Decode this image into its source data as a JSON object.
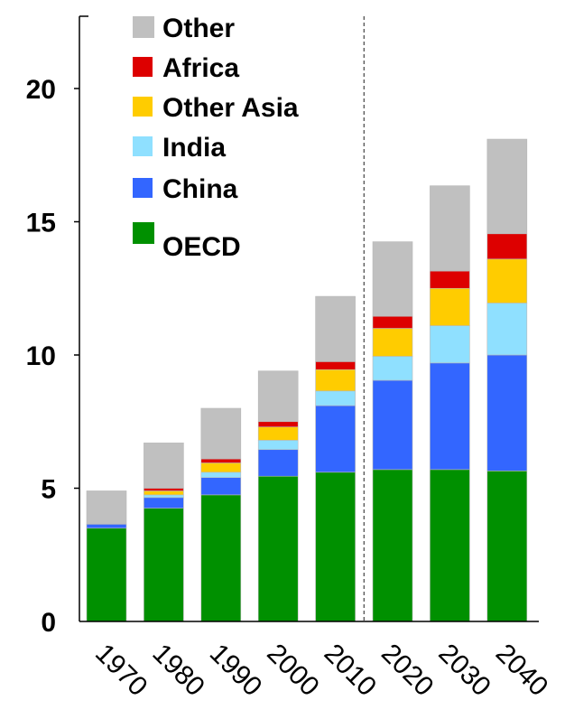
{
  "chart_data": {
    "type": "bar",
    "stacked": true,
    "categories": [
      "1970",
      "1980",
      "1990",
      "2000",
      "2010",
      "2020",
      "2030",
      "2040"
    ],
    "series": [
      {
        "name": "OECD",
        "color": "#009000",
        "values": [
          3.5,
          4.25,
          4.75,
          5.45,
          5.6,
          5.7,
          5.7,
          5.65
        ]
      },
      {
        "name": "China",
        "color": "#3366ff",
        "values": [
          0.15,
          0.4,
          0.65,
          1.0,
          2.5,
          3.35,
          4.0,
          4.35
        ]
      },
      {
        "name": "India",
        "color": "#8fe0ff",
        "values": [
          0.0,
          0.1,
          0.2,
          0.35,
          0.55,
          0.9,
          1.4,
          1.95
        ]
      },
      {
        "name": "Other Asia",
        "color": "#ffcc00",
        "values": [
          0.0,
          0.15,
          0.35,
          0.5,
          0.8,
          1.05,
          1.4,
          1.65
        ]
      },
      {
        "name": "Africa",
        "color": "#dd0000",
        "values": [
          0.0,
          0.1,
          0.15,
          0.2,
          0.3,
          0.45,
          0.65,
          0.95
        ]
      },
      {
        "name": "Other",
        "color": "#c0c0c0",
        "values": [
          1.25,
          1.7,
          1.9,
          1.9,
          2.45,
          2.8,
          3.2,
          3.55
        ]
      }
    ],
    "legend_order": [
      "Other",
      "Africa",
      "Other Asia",
      "India",
      "China",
      "OECD"
    ],
    "y_ticks": [
      "0",
      "5",
      "10",
      "15",
      "20"
    ],
    "ylim": [
      0,
      20
    ],
    "divider_after_category": "2010",
    "legend_position": "top-left",
    "grid": false
  }
}
